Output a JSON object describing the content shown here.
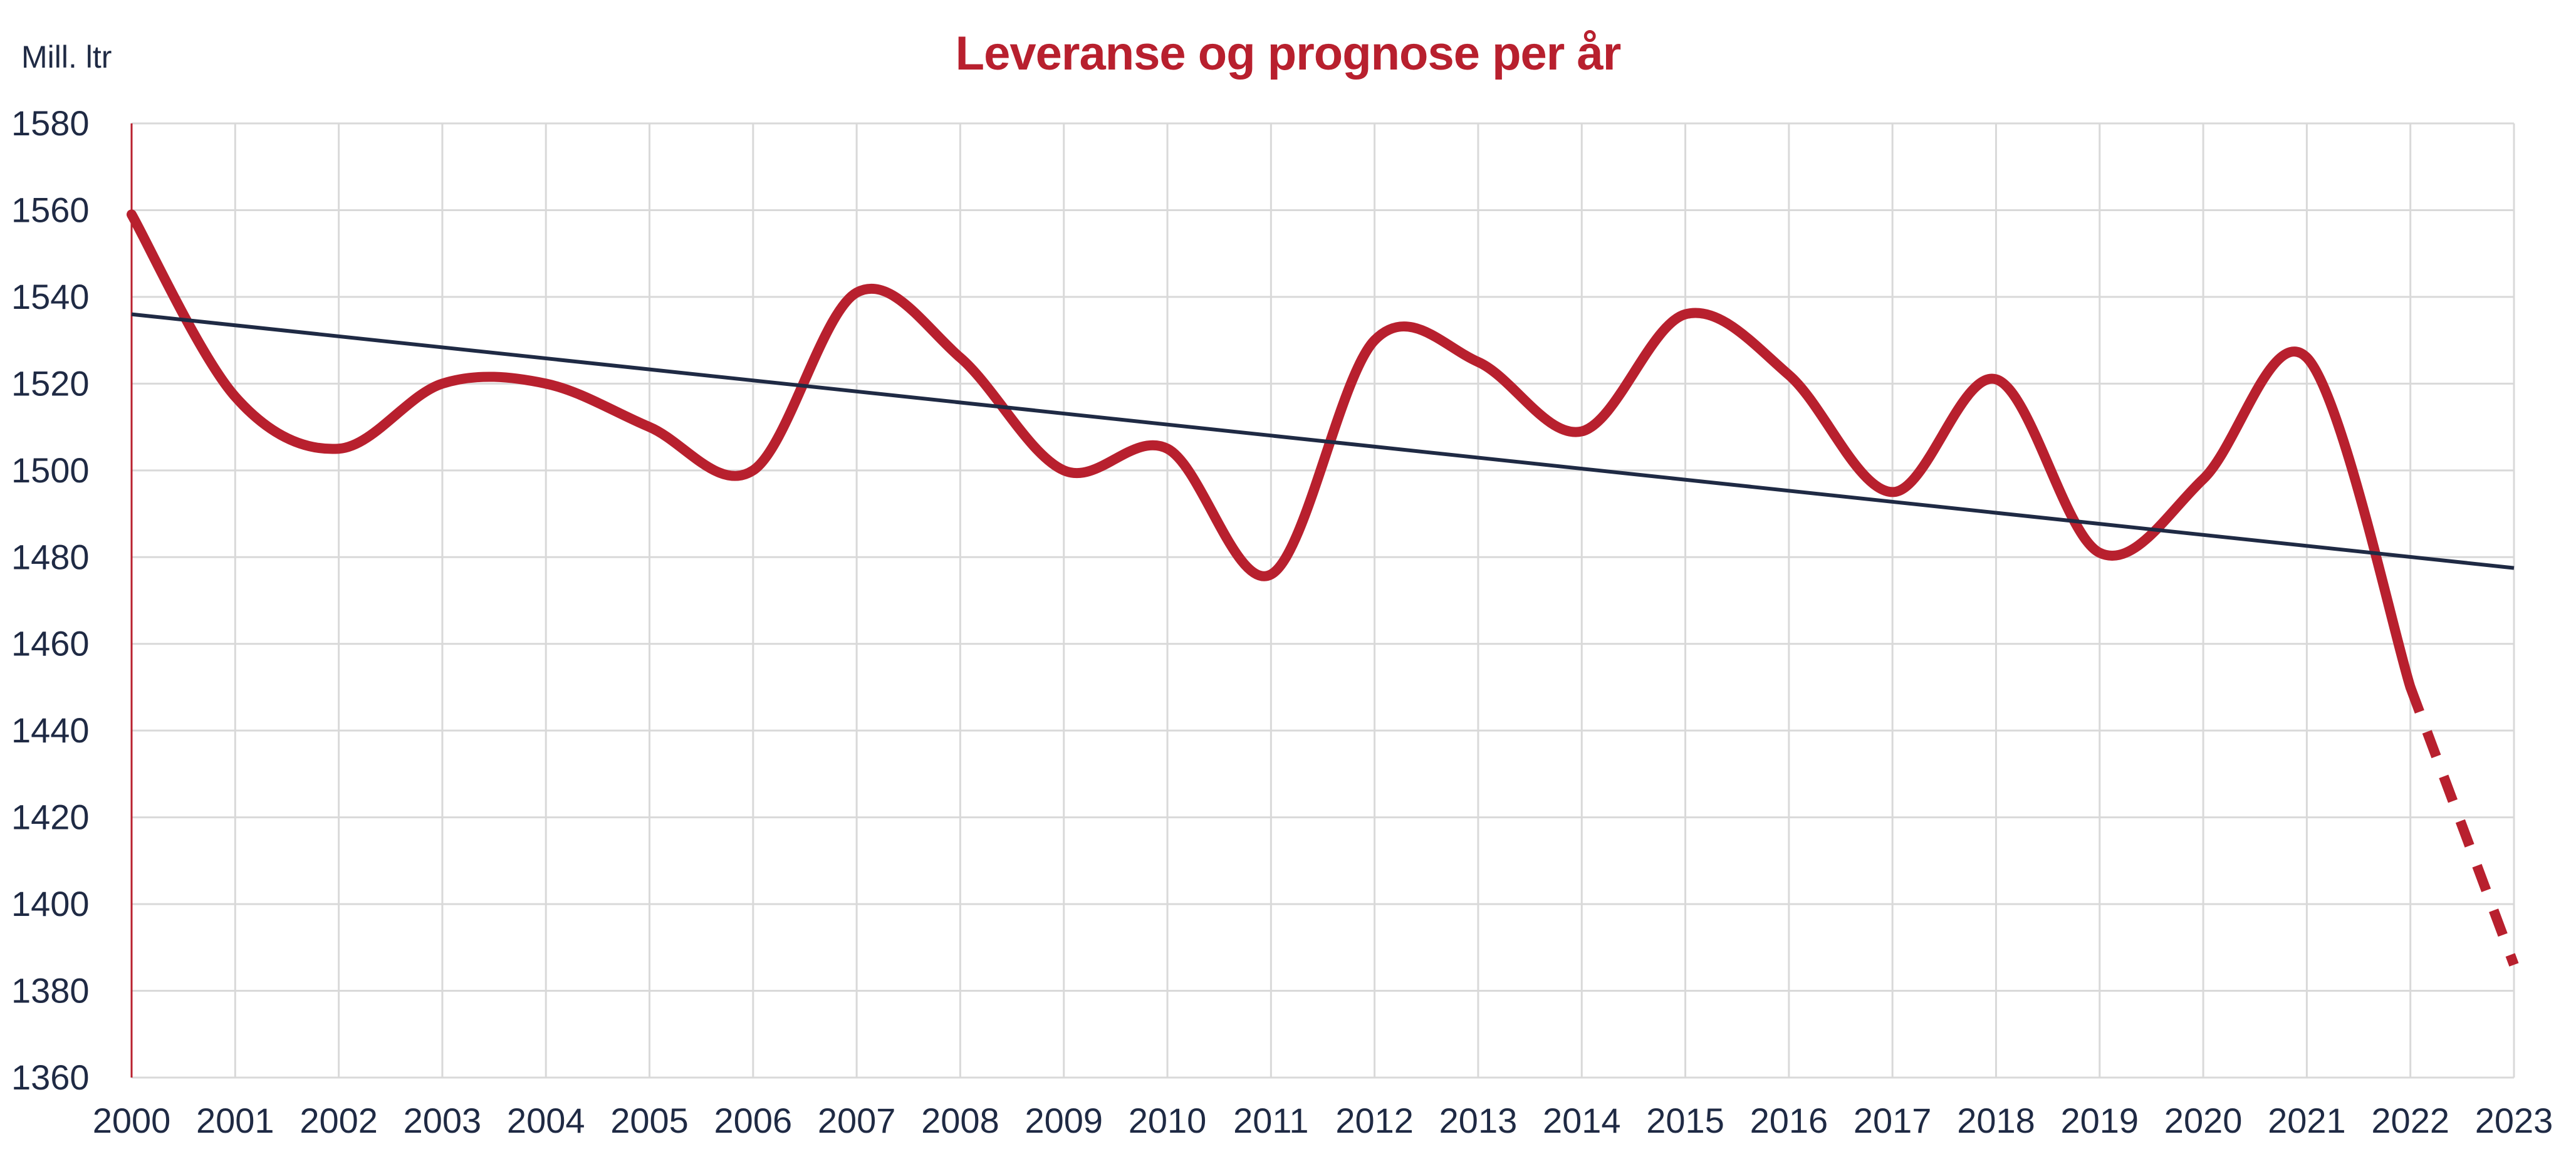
{
  "chart_data": {
    "type": "line",
    "title": "Leveranse og prognose per år",
    "ylabel": "Mill. ltr",
    "xlabel": "",
    "x": [
      "2000",
      "2001",
      "2002",
      "2003",
      "2004",
      "2005",
      "2006",
      "2007",
      "2008",
      "2009",
      "2010",
      "2011",
      "2012",
      "2013",
      "2014",
      "2015",
      "2016",
      "2017",
      "2018",
      "2019",
      "2020",
      "2021",
      "2022",
      "2023"
    ],
    "ylim": [
      1360,
      1580
    ],
    "yticks": [
      1360,
      1380,
      1400,
      1420,
      1440,
      1460,
      1480,
      1500,
      1520,
      1540,
      1560,
      1580
    ],
    "grid": true,
    "series": [
      {
        "values": [
          1559,
          1517,
          1505,
          1520,
          1520,
          1510,
          1500,
          1541,
          1526,
          1500,
          1505,
          1476,
          1530,
          1525,
          1509,
          1536,
          1522,
          1495,
          1521,
          1481,
          1498,
          1526,
          1450,
          null
        ],
        "color": "#b8202e",
        "style": "solid"
      },
      {
        "values": [
          null,
          null,
          null,
          null,
          null,
          null,
          null,
          null,
          null,
          null,
          null,
          null,
          null,
          null,
          null,
          null,
          null,
          null,
          null,
          null,
          null,
          null,
          1450,
          1386
        ],
        "color": "#b8202e",
        "style": "dashed"
      },
      {
        "type": "trendline",
        "start": [
          2000,
          1536
        ],
        "end": [
          2023,
          1477.5
        ],
        "color": "#1f2a44"
      }
    ]
  }
}
